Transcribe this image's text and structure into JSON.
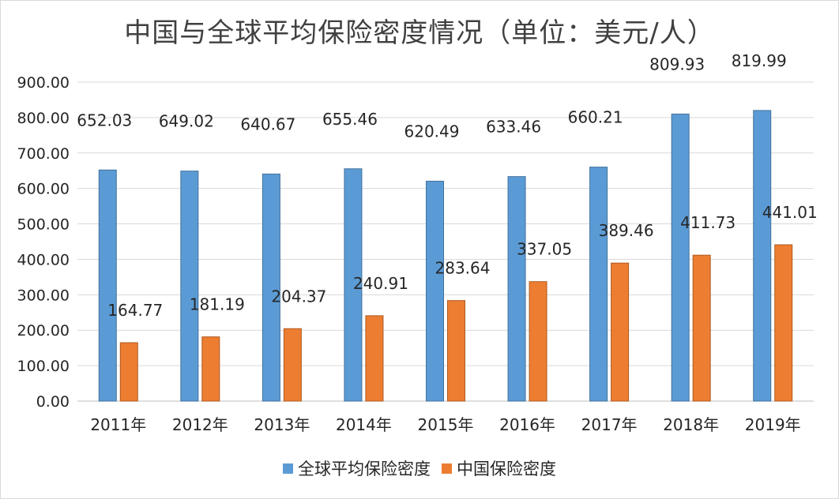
{
  "chart_data": {
    "type": "bar",
    "title": "中国与全球平均保险密度情况（单位：美元/人）",
    "categories": [
      "2011年",
      "2012年",
      "2013年",
      "2014年",
      "2015年",
      "2016年",
      "2017年",
      "2018年",
      "2019年"
    ],
    "series": [
      {
        "name": "全球平均保险密度",
        "color": "#5b9bd5",
        "values": [
          652.03,
          649.02,
          640.67,
          655.46,
          620.49,
          633.46,
          660.21,
          809.93,
          819.99
        ],
        "labels": [
          "652.03",
          "649.02",
          "640.67",
          "655.46",
          "620.49",
          "633.46",
          "660.21",
          "809.93",
          "819.99"
        ]
      },
      {
        "name": "中国保险密度",
        "color": "#ed7d31",
        "values": [
          164.77,
          181.19,
          204.37,
          240.91,
          283.64,
          337.05,
          389.46,
          411.73,
          441.01
        ],
        "labels": [
          "164.77",
          "181.19",
          "204.37",
          "240.91",
          "283.64",
          "337.05",
          "389.46",
          "411.73",
          "441.01"
        ]
      }
    ],
    "ylim": [
      0,
      900
    ],
    "yticks": [
      "0.00",
      "100.00",
      "200.00",
      "300.00",
      "400.00",
      "500.00",
      "600.00",
      "700.00",
      "800.00",
      "900.00"
    ],
    "grid": true,
    "legend_position": "bottom"
  }
}
